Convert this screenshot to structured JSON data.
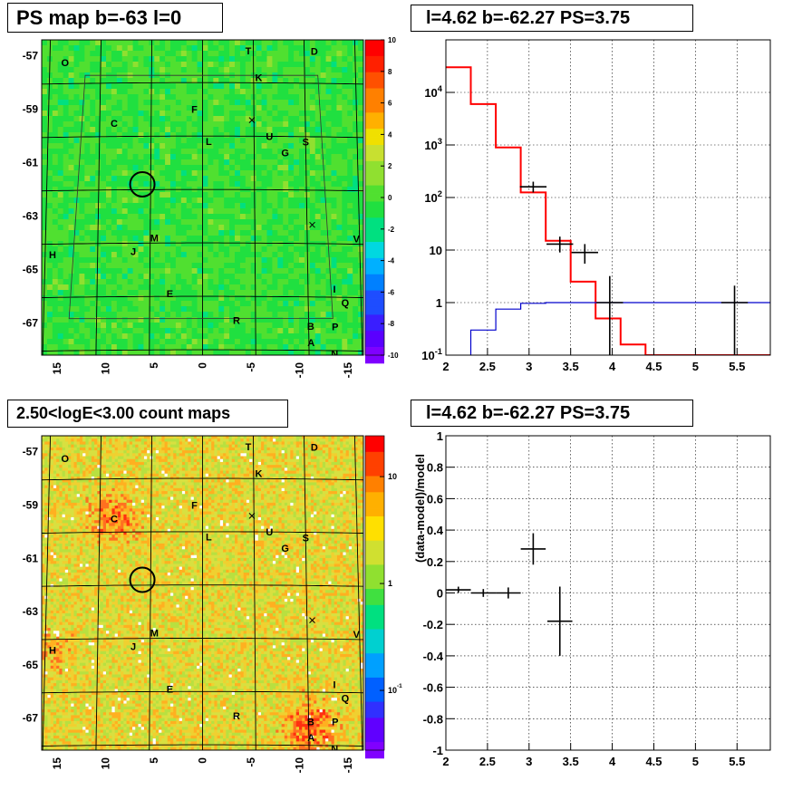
{
  "titles": {
    "ps_map": "PS map b=-63 l=0",
    "spectrum": "l=4.62 b=-62.27 PS=3.75",
    "count_map": "2.50<logE<3.00 count maps",
    "residual": "l=4.62 b=-62.27 PS=3.75"
  },
  "colors": {
    "model_red": "#ff0000",
    "model_blue": "#0000cc",
    "data_black": "#000000",
    "ps_map_bg": "#33e033",
    "count_map_bg": "#d8e040"
  },
  "chart_data": [
    {
      "type": "heatmap",
      "panel": "ps_map",
      "title": "PS map b=-63 l=0",
      "x_ticks": [
        "15",
        "10",
        "5",
        "0",
        "-5",
        "-10",
        "-15"
      ],
      "x_tick_values": [
        15,
        10,
        5,
        0,
        -5,
        -10,
        -15
      ],
      "y_ticks": [
        "-57",
        "-59",
        "-61",
        "-63",
        "-65",
        "-67"
      ],
      "y_tick_values": [
        -57,
        -59,
        -61,
        -63,
        -65,
        -67
      ],
      "xlim": [
        16,
        -16
      ],
      "ylim": [
        -68.2,
        -56.4
      ],
      "colorbar": {
        "ticks": [
          "10",
          "8",
          "6",
          "4",
          "2",
          "0",
          "-2",
          "-4",
          "-6",
          "-8",
          "-10"
        ],
        "range": [
          -10,
          10
        ]
      },
      "labels": [
        {
          "text": "O",
          "l": 13.5,
          "b": -57.2
        },
        {
          "text": "T",
          "l": -4.5,
          "b": -56.8
        },
        {
          "text": "D",
          "l": -11,
          "b": -56.8
        },
        {
          "text": "K",
          "l": -5.5,
          "b": -57.8
        },
        {
          "text": "F",
          "l": 0.8,
          "b": -59.0
        },
        {
          "text": "C",
          "l": 8.6,
          "b": -59.5
        },
        {
          "text": "U",
          "l": -6.5,
          "b": -60.0
        },
        {
          "text": "L",
          "l": -0.6,
          "b": -60.2
        },
        {
          "text": "S",
          "l": -10,
          "b": -60.2
        },
        {
          "text": "G",
          "l": -8,
          "b": -60.6
        },
        {
          "text": "M",
          "l": 4.6,
          "b": -63.8
        },
        {
          "text": "J",
          "l": 6.6,
          "b": -64.3
        },
        {
          "text": "H",
          "l": 14.3,
          "b": -64.4
        },
        {
          "text": "V",
          "l": -14.7,
          "b": -63.8
        },
        {
          "text": "I",
          "l": -12.5,
          "b": -65.7
        },
        {
          "text": "E",
          "l": 3.1,
          "b": -65.9
        },
        {
          "text": "Q",
          "l": -13.5,
          "b": -66.2
        },
        {
          "text": "R",
          "l": -3.2,
          "b": -66.9
        },
        {
          "text": "B",
          "l": -10.2,
          "b": -67.1
        },
        {
          "text": "P",
          "l": -12.5,
          "b": -67.1
        },
        {
          "text": "A",
          "l": -10.2,
          "b": -67.7
        },
        {
          "text": "N",
          "l": -12.4,
          "b": -68.1
        }
      ],
      "markers": [
        {
          "kind": "x",
          "l": -4.8,
          "b": -59.4
        },
        {
          "kind": "x",
          "l": -10.5,
          "b": -63.3
        },
        {
          "kind": "circle",
          "l": 5.8,
          "b": -61.8
        }
      ]
    },
    {
      "type": "line",
      "panel": "spectrum",
      "title": "l=4.62 b=-62.27 PS=3.75",
      "xlim": [
        2,
        5.9
      ],
      "ylim": [
        0.1,
        100000
      ],
      "yscale": "log",
      "grid": true,
      "x_ticks": [
        "2",
        "2.5",
        "3",
        "3.5",
        "4",
        "4.5",
        "5",
        "5.5"
      ],
      "x_tick_values": [
        2,
        2.5,
        3,
        3.5,
        4,
        4.5,
        5,
        5.5
      ],
      "y_ticks": [
        "10^-1",
        "1",
        "10",
        "10^2",
        "10^3",
        "10^4"
      ],
      "y_tick_values": [
        0.1,
        1,
        10,
        100,
        1000,
        10000
      ],
      "series": [
        {
          "role": "total-model",
          "color": "#ff0000",
          "style": "step",
          "bin_edges": [
            2.0,
            2.3,
            2.6,
            2.9,
            3.2,
            3.5,
            3.8,
            4.1,
            4.4,
            5.9
          ],
          "values": [
            30000,
            6000,
            900,
            125,
            15,
            2.5,
            0.5,
            0.16,
            0.1
          ]
        },
        {
          "role": "point-source-model",
          "color": "#0000cc",
          "style": "step",
          "bin_edges": [
            2.3,
            2.6,
            2.9,
            3.2,
            3.5,
            5.9
          ],
          "values": [
            0.3,
            0.75,
            0.97,
            1.0,
            1.0
          ]
        },
        {
          "role": "data",
          "color": "#000000",
          "style": "errorbar",
          "points": [
            {
              "x": 3.05,
              "xerr": 0.16,
              "y": 160,
              "ylo": 125,
              "yhi": 200
            },
            {
              "x": 3.37,
              "xerr": 0.16,
              "y": 13,
              "ylo": 9,
              "yhi": 18
            },
            {
              "x": 3.67,
              "xerr": 0.16,
              "y": 9,
              "ylo": 5.5,
              "yhi": 13
            },
            {
              "x": 3.97,
              "xerr": 0.16,
              "y": 1,
              "ylo": 0.1,
              "yhi": 3.2
            },
            {
              "x": 5.47,
              "xerr": 0.16,
              "y": 1,
              "ylo": 0.1,
              "yhi": 2.1
            }
          ]
        }
      ]
    },
    {
      "type": "heatmap",
      "panel": "count_map",
      "title": "2.50<logE<3.00 count maps",
      "x_ticks": [
        "15",
        "10",
        "5",
        "0",
        "-5",
        "-10",
        "-15"
      ],
      "x_tick_values": [
        15,
        10,
        5,
        0,
        -5,
        -10,
        -15
      ],
      "y_ticks": [
        "-57",
        "-59",
        "-61",
        "-63",
        "-65",
        "-67"
      ],
      "y_tick_values": [
        -57,
        -59,
        -61,
        -63,
        -65,
        -67
      ],
      "xlim": [
        16,
        -16
      ],
      "ylim": [
        -68.2,
        -56.4
      ],
      "colorbar": {
        "scale": "log",
        "ticks": [
          "10",
          "1",
          "10^-1"
        ]
      },
      "hotspots": [
        {
          "l": 8.6,
          "b": -59.5,
          "strength": 0.8
        },
        {
          "l": -10.2,
          "b": -67.3,
          "strength": 1.0
        },
        {
          "l": 14.5,
          "b": -64.5,
          "strength": 0.4
        }
      ]
    },
    {
      "type": "scatter",
      "panel": "residual",
      "title": "l=4.62 b=-62.27 PS=3.75",
      "ylabel": "(data-model)/model",
      "xlim": [
        2,
        5.9
      ],
      "ylim": [
        -1,
        1
      ],
      "grid": true,
      "x_ticks": [
        "2",
        "2.5",
        "3",
        "3.5",
        "4",
        "4.5",
        "5",
        "5.5"
      ],
      "x_tick_values": [
        2,
        2.5,
        3,
        3.5,
        4,
        4.5,
        5,
        5.5
      ],
      "y_ticks": [
        "1",
        "0.8",
        "0.6",
        "0.4",
        "0.2",
        "0",
        "-0.2",
        "-0.4",
        "-0.6",
        "-0.8",
        "-1"
      ],
      "y_tick_values": [
        1,
        0.8,
        0.6,
        0.4,
        0.2,
        0,
        -0.2,
        -0.4,
        -0.6,
        -0.8,
        -1
      ],
      "points": [
        {
          "x": 2.15,
          "xerr": 0.15,
          "y": 0.02,
          "yerr": 0.02
        },
        {
          "x": 2.45,
          "xerr": 0.15,
          "y": 0.0,
          "yerr": 0.025
        },
        {
          "x": 2.75,
          "xerr": 0.15,
          "y": 0.0,
          "yerr": 0.035
        },
        {
          "x": 3.05,
          "xerr": 0.15,
          "y": 0.28,
          "yerr": 0.1
        },
        {
          "x": 3.37,
          "xerr": 0.15,
          "y": -0.18,
          "yerr": 0.22
        }
      ]
    }
  ]
}
